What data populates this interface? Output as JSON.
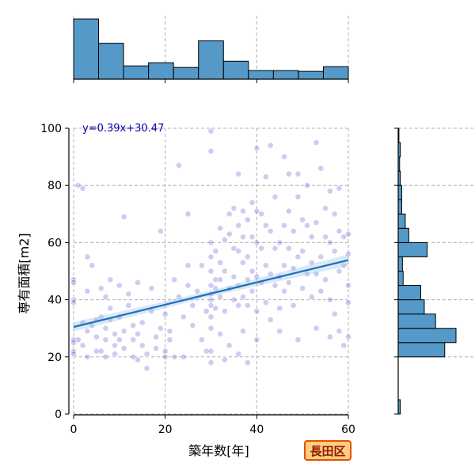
{
  "chart_data": {
    "type": "scatter",
    "xlabel": "築年数[年]",
    "ylabel": "専有面積[m2]",
    "xlim": [
      0,
      60
    ],
    "ylim": [
      0,
      100
    ],
    "x_ticks": [
      0,
      20,
      40,
      60
    ],
    "y_ticks": [
      0,
      20,
      40,
      60,
      80,
      100
    ],
    "grid": true,
    "annotation": "y=0.39x+30.47",
    "regression": {
      "slope": 0.39,
      "intercept": 30.47,
      "x_range": [
        0,
        60
      ],
      "ci_halfwidth": [
        1.6,
        1.0,
        2.0
      ]
    },
    "badge": "長田区",
    "scatter_points": [
      [
        0,
        47
      ],
      [
        0,
        46
      ],
      [
        0,
        40
      ],
      [
        0,
        39
      ],
      [
        0,
        26
      ],
      [
        0,
        25
      ],
      [
        0,
        22
      ],
      [
        0,
        21
      ],
      [
        1,
        80
      ],
      [
        1,
        26
      ],
      [
        2,
        79
      ],
      [
        2,
        32
      ],
      [
        2,
        24
      ],
      [
        3,
        20
      ],
      [
        3,
        29
      ],
      [
        3,
        55
      ],
      [
        3,
        43
      ],
      [
        4,
        52
      ],
      [
        4,
        31
      ],
      [
        5,
        27
      ],
      [
        5,
        33
      ],
      [
        5,
        22
      ],
      [
        6,
        22
      ],
      [
        6,
        34
      ],
      [
        6,
        44
      ],
      [
        7,
        41
      ],
      [
        7,
        20
      ],
      [
        7,
        30
      ],
      [
        7,
        26
      ],
      [
        8,
        33
      ],
      [
        8,
        37
      ],
      [
        8,
        47
      ],
      [
        9,
        28
      ],
      [
        9,
        24
      ],
      [
        9,
        21
      ],
      [
        10,
        26
      ],
      [
        10,
        34
      ],
      [
        10,
        45
      ],
      [
        11,
        69
      ],
      [
        11,
        29
      ],
      [
        11,
        23
      ],
      [
        12,
        38
      ],
      [
        12,
        42
      ],
      [
        13,
        26
      ],
      [
        13,
        31
      ],
      [
        13,
        20
      ],
      [
        14,
        46
      ],
      [
        14,
        28
      ],
      [
        14,
        19
      ],
      [
        15,
        32
      ],
      [
        15,
        24
      ],
      [
        16,
        16
      ],
      [
        16,
        21
      ],
      [
        17,
        36
      ],
      [
        17,
        44
      ],
      [
        18,
        27
      ],
      [
        18,
        23
      ],
      [
        19,
        30
      ],
      [
        19,
        64
      ],
      [
        20,
        20
      ],
      [
        20,
        22
      ],
      [
        20,
        35
      ],
      [
        21,
        29
      ],
      [
        21,
        26
      ],
      [
        22,
        47
      ],
      [
        22,
        20
      ],
      [
        23,
        87
      ],
      [
        23,
        41
      ],
      [
        24,
        34
      ],
      [
        24,
        20
      ],
      [
        25,
        70
      ],
      [
        25,
        52
      ],
      [
        25,
        45
      ],
      [
        26,
        31
      ],
      [
        26,
        38
      ],
      [
        27,
        43
      ],
      [
        28,
        52
      ],
      [
        28,
        26
      ],
      [
        29,
        22
      ],
      [
        29,
        36
      ],
      [
        30,
        99
      ],
      [
        30,
        92
      ],
      [
        30,
        60
      ],
      [
        30,
        55
      ],
      [
        30,
        50
      ],
      [
        30,
        45
      ],
      [
        30,
        42
      ],
      [
        30,
        40
      ],
      [
        30,
        38
      ],
      [
        30,
        34
      ],
      [
        30,
        30
      ],
      [
        30,
        22
      ],
      [
        30,
        18
      ],
      [
        31,
        57
      ],
      [
        31,
        47
      ],
      [
        31,
        44
      ],
      [
        31,
        37
      ],
      [
        32,
        65
      ],
      [
        32,
        53
      ],
      [
        32,
        47
      ],
      [
        32,
        41
      ],
      [
        32,
        28
      ],
      [
        33,
        61
      ],
      [
        33,
        50
      ],
      [
        33,
        36
      ],
      [
        33,
        19
      ],
      [
        34,
        70
      ],
      [
        34,
        63
      ],
      [
        34,
        44
      ],
      [
        34,
        24
      ],
      [
        35,
        72
      ],
      [
        35,
        58
      ],
      [
        35,
        48
      ],
      [
        35,
        40
      ],
      [
        36,
        84
      ],
      [
        36,
        66
      ],
      [
        36,
        57
      ],
      [
        36,
        45
      ],
      [
        36,
        38
      ],
      [
        36,
        21
      ],
      [
        37,
        71
      ],
      [
        37,
        62
      ],
      [
        37,
        53
      ],
      [
        37,
        41
      ],
      [
        37,
        29
      ],
      [
        38,
        68
      ],
      [
        38,
        55
      ],
      [
        38,
        47
      ],
      [
        38,
        38
      ],
      [
        38,
        18
      ],
      [
        39,
        74
      ],
      [
        39,
        62
      ],
      [
        39,
        50
      ],
      [
        39,
        43
      ],
      [
        40,
        93
      ],
      [
        40,
        71
      ],
      [
        40,
        60
      ],
      [
        40,
        48
      ],
      [
        40,
        36
      ],
      [
        40,
        26
      ],
      [
        41,
        70
      ],
      [
        41,
        58
      ],
      [
        41,
        46
      ],
      [
        42,
        83
      ],
      [
        42,
        66
      ],
      [
        42,
        52
      ],
      [
        42,
        39
      ],
      [
        43,
        94
      ],
      [
        43,
        64
      ],
      [
        43,
        49
      ],
      [
        43,
        33
      ],
      [
        44,
        76
      ],
      [
        44,
        58
      ],
      [
        44,
        45
      ],
      [
        45,
        60
      ],
      [
        45,
        48
      ],
      [
        45,
        37
      ],
      [
        45,
        29
      ],
      [
        46,
        90
      ],
      [
        46,
        66
      ],
      [
        46,
        52
      ],
      [
        46,
        43
      ],
      [
        47,
        84
      ],
      [
        47,
        71
      ],
      [
        47,
        58
      ],
      [
        47,
        46
      ],
      [
        48,
        64
      ],
      [
        48,
        51
      ],
      [
        48,
        38
      ],
      [
        49,
        84
      ],
      [
        49,
        76
      ],
      [
        49,
        55
      ],
      [
        49,
        26
      ],
      [
        50,
        68
      ],
      [
        50,
        57
      ],
      [
        50,
        44
      ],
      [
        51,
        80
      ],
      [
        51,
        66
      ],
      [
        51,
        49
      ],
      [
        52,
        62
      ],
      [
        52,
        53
      ],
      [
        52,
        41
      ],
      [
        53,
        95
      ],
      [
        53,
        67
      ],
      [
        53,
        49
      ],
      [
        53,
        30
      ],
      [
        54,
        86
      ],
      [
        54,
        55
      ],
      [
        54,
        43
      ],
      [
        55,
        72
      ],
      [
        55,
        62
      ],
      [
        55,
        47
      ],
      [
        56,
        78
      ],
      [
        56,
        60
      ],
      [
        56,
        40
      ],
      [
        56,
        27
      ],
      [
        57,
        70
      ],
      [
        57,
        57
      ],
      [
        57,
        35
      ],
      [
        58,
        79
      ],
      [
        58,
        64
      ],
      [
        58,
        50
      ],
      [
        58,
        29
      ],
      [
        59,
        62
      ],
      [
        59,
        52
      ],
      [
        59,
        24
      ],
      [
        60,
        63
      ],
      [
        60,
        56
      ],
      [
        60,
        45
      ],
      [
        60,
        39
      ],
      [
        60,
        27
      ]
    ],
    "top_histogram": {
      "bins": [
        0,
        5.45,
        10.9,
        16.36,
        21.82,
        27.27,
        32.73,
        38.18,
        43.64,
        49.09,
        54.55,
        60
      ],
      "counts": [
        77,
        46,
        17,
        21,
        15,
        49,
        23,
        11,
        11,
        10,
        16
      ]
    },
    "right_histogram": {
      "bins": [
        0,
        5,
        10,
        15,
        20,
        25,
        30,
        35,
        40,
        45,
        50,
        55,
        60,
        65,
        70,
        75,
        80,
        85,
        90,
        95,
        100
      ],
      "counts": [
        3,
        0,
        0,
        0,
        66,
        82,
        53,
        37,
        32,
        7,
        6,
        41,
        15,
        10,
        5,
        5,
        3,
        2,
        3,
        1
      ]
    }
  }
}
